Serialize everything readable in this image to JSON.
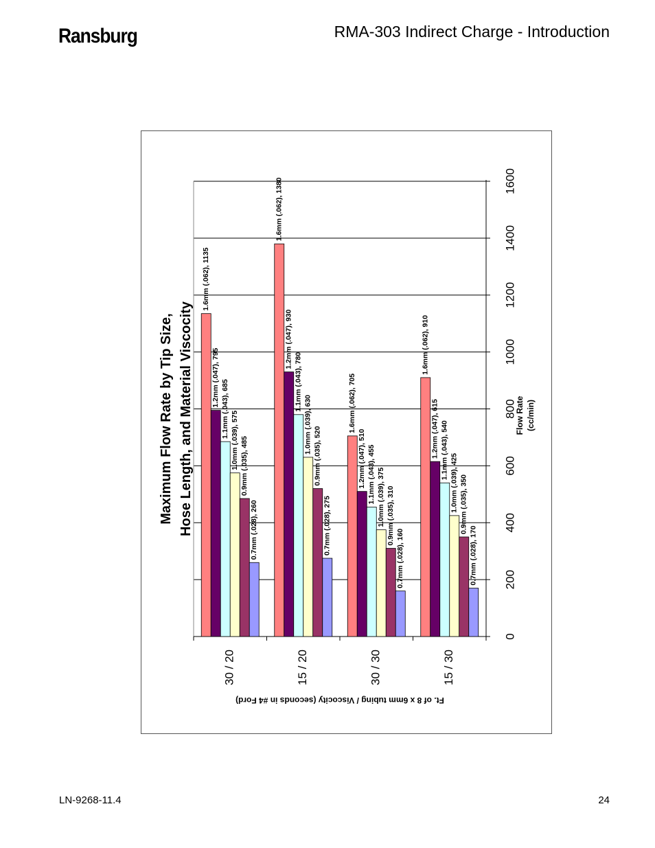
{
  "header": {
    "logo_text": "Ransburg",
    "title": "RMA-303 Indirect Charge - Introduction"
  },
  "footer": {
    "doc_number": "LN-9268-11.4",
    "page_number": "24"
  },
  "chart_data": {
    "type": "bar",
    "orientation": "rotated-90-ccw",
    "title_lines": [
      "Maximum Flow Rate by Tip Size,",
      "Hose Length, and Material Viscocity"
    ],
    "xlabel": "Ft. of 8 x 6mm tubing / Viscocity (seconds in #4 Ford)",
    "ylabel_lines": [
      "Flow Rate",
      "(cc/min)"
    ],
    "ylim": [
      0,
      1600
    ],
    "yticks": [
      0,
      200,
      400,
      600,
      800,
      1000,
      1200,
      1400,
      1600
    ],
    "grid": true,
    "categories": [
      "30 / 20",
      "15 / 20",
      "30 / 30",
      "15 / 30"
    ],
    "series": [
      {
        "color": "#ff8080",
        "values": [
          1135,
          1380,
          705,
          910
        ],
        "labels": [
          "1.6mm (.062), 1135",
          "1.6mm (.062), 1380",
          "1.6mm (.062), 705",
          "1.6mm (.062), 910"
        ]
      },
      {
        "color": "#660066",
        "values": [
          795,
          930,
          510,
          615
        ],
        "labels": [
          "1.2mm (.047), 795",
          "1.2mm (.047), 930",
          "1.2mm (.047), 510",
          "1.2mm (.047), 615"
        ]
      },
      {
        "color": "#ccffff",
        "values": [
          685,
          780,
          455,
          540
        ],
        "labels": [
          "1.1mm (.043), 685",
          "1.1mm (.043), 780",
          "1.1mm (.043), 455",
          "1.1mm (.043), 540"
        ]
      },
      {
        "color": "#ffffcc",
        "values": [
          575,
          630,
          375,
          425
        ],
        "labels": [
          "1.0mm (.039), 575",
          "1.0mm (.039), 630",
          "1.0mm (.039), 375",
          "1.0mm (.039), 425"
        ]
      },
      {
        "color": "#993366",
        "values": [
          485,
          520,
          310,
          350
        ],
        "labels": [
          "0.9mm (.035), 485",
          "0.9mm (.035), 520",
          "0.9mm (.035), 310",
          "0.9mm (.035), 350"
        ]
      },
      {
        "color": "#9999ff",
        "values": [
          260,
          275,
          160,
          170
        ],
        "labels": [
          "0.7mm (.028), 260",
          "0.7mm (.028), 275",
          "0.7mm (.028), 160",
          "0.7mm (.028), 170"
        ]
      }
    ]
  }
}
